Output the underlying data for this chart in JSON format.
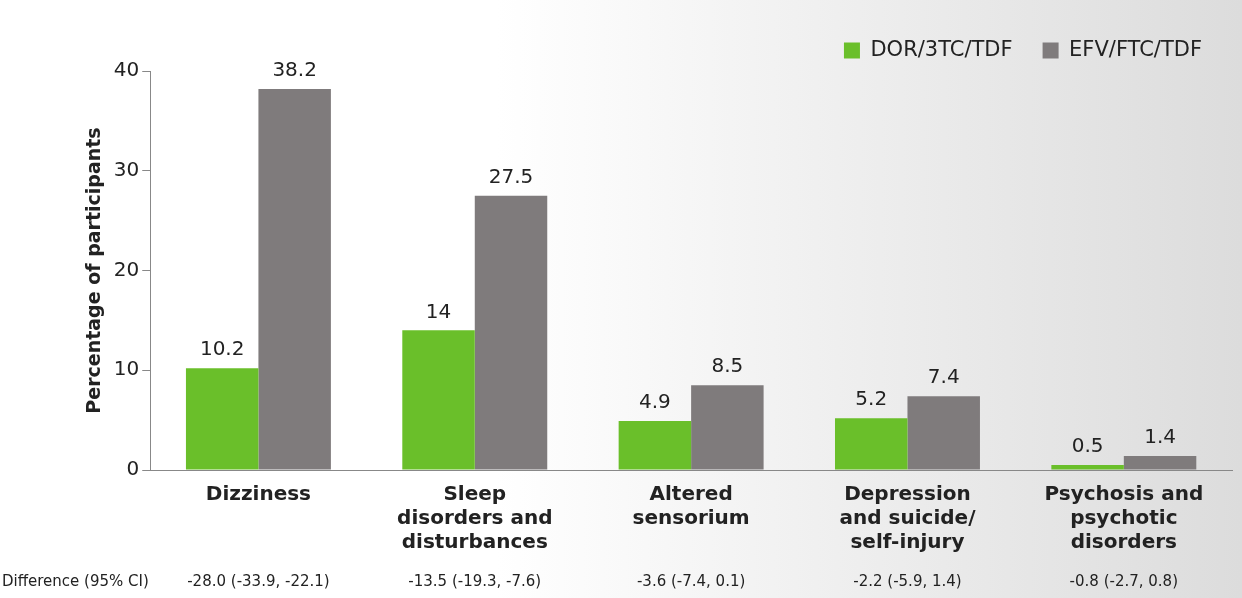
{
  "chart_data": {
    "type": "bar",
    "categories": [
      "Dizziness",
      "Sleep\ndisorders and\ndisturbances",
      "Altered\nsensorium",
      "Depression\nand suicide/\nself-injury",
      "Psychosis and\npsychotic\ndisorders"
    ],
    "series": [
      {
        "name": "DOR/3TC/TDF",
        "color": "#6abf2a",
        "values": [
          10.2,
          14,
          4.9,
          5.2,
          0.5
        ]
      },
      {
        "name": "EFV/FTC/TDF",
        "color": "#7f7b7c",
        "values": [
          38.2,
          27.5,
          8.5,
          7.4,
          1.4
        ]
      }
    ],
    "ylabel": "Percentage of participants",
    "ylim": [
      0,
      40
    ],
    "yticks": [
      0,
      10,
      20,
      30,
      40
    ],
    "grid": false,
    "legend": "top right",
    "data_labels": true,
    "annotations": [
      "Difference (95% CI)",
      "-28.0 (-33.9, -22.1)",
      "-13.5 (-19.3, -7.6)",
      "-3.6 (-7.4, 0.1)",
      "-2.2 (-5.9, 1.4)",
      "-0.8 (-2.7, 0.8)"
    ]
  }
}
